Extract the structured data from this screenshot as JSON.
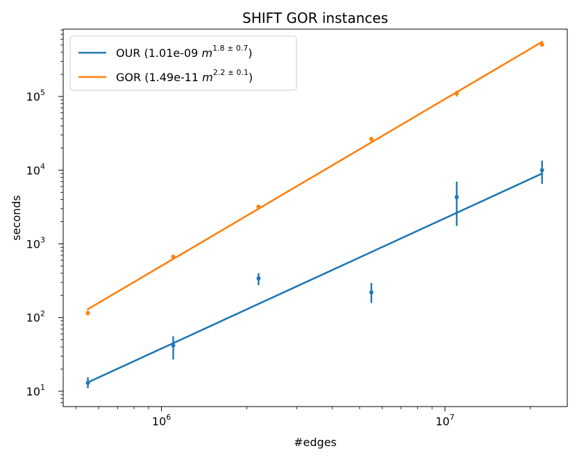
{
  "chart_data": {
    "type": "scatter",
    "title": "SHIFT GOR instances",
    "xlabel": "#edges",
    "ylabel": "seconds",
    "xscale": "log",
    "yscale": "log",
    "xlim": [
      450000,
      27000000
    ],
    "ylim": [
      6.2,
      820000
    ],
    "x_ticks": [
      {
        "value": 1000000,
        "base": "10",
        "exp": "6"
      },
      {
        "value": 10000000,
        "base": "10",
        "exp": "7"
      }
    ],
    "y_ticks": [
      {
        "value": 10,
        "base": "10",
        "exp": "1"
      },
      {
        "value": 100,
        "base": "10",
        "exp": "2"
      },
      {
        "value": 1000,
        "base": "10",
        "exp": "3"
      },
      {
        "value": 10000,
        "base": "10",
        "exp": "4"
      },
      {
        "value": 100000,
        "base": "10",
        "exp": "5"
      }
    ],
    "legend_position": "top-left",
    "series": [
      {
        "name": "OUR",
        "color": "#1f77b4",
        "legend_prefix": "OUR (1.01e-09 ",
        "legend_var": "m",
        "legend_exponent": "1.8 ± 0.7",
        "legend_suffix": ")",
        "fit_line": {
          "x": [
            550000,
            22000000
          ],
          "y": [
            13.2,
            9000
          ]
        },
        "points": [
          {
            "x": 550000,
            "y": 13,
            "ylow": 11,
            "yhigh": 15.5
          },
          {
            "x": 1100000,
            "y": 42,
            "ylow": 27,
            "yhigh": 56
          },
          {
            "x": 2200000,
            "y": 340,
            "ylow": 275,
            "yhigh": 400
          },
          {
            "x": 5500000,
            "y": 220,
            "ylow": 158,
            "yhigh": 295
          },
          {
            "x": 11000000,
            "y": 4300,
            "ylow": 1750,
            "yhigh": 7000
          },
          {
            "x": 22000000,
            "y": 10000,
            "ylow": 6500,
            "yhigh": 13500
          }
        ]
      },
      {
        "name": "GOR",
        "color": "#ff7f0e",
        "legend_prefix": "GOR (1.49e-11 ",
        "legend_var": "m",
        "legend_exponent": "2.2 ± 0.1",
        "legend_suffix": ")",
        "fit_line": {
          "x": [
            550000,
            22000000
          ],
          "y": [
            130,
            550000
          ]
        },
        "points": [
          {
            "x": 550000,
            "y": 115,
            "ylow": 107,
            "yhigh": 124
          },
          {
            "x": 1100000,
            "y": 670,
            "ylow": 650,
            "yhigh": 690
          },
          {
            "x": 2200000,
            "y": 3200,
            "ylow": 3100,
            "yhigh": 3300
          },
          {
            "x": 5500000,
            "y": 26500,
            "ylow": 25800,
            "yhigh": 27200
          },
          {
            "x": 11000000,
            "y": 110000,
            "ylow": 100000,
            "yhigh": 120000
          },
          {
            "x": 22000000,
            "y": 505000,
            "ylow": 485000,
            "yhigh": 525000
          }
        ]
      }
    ]
  }
}
